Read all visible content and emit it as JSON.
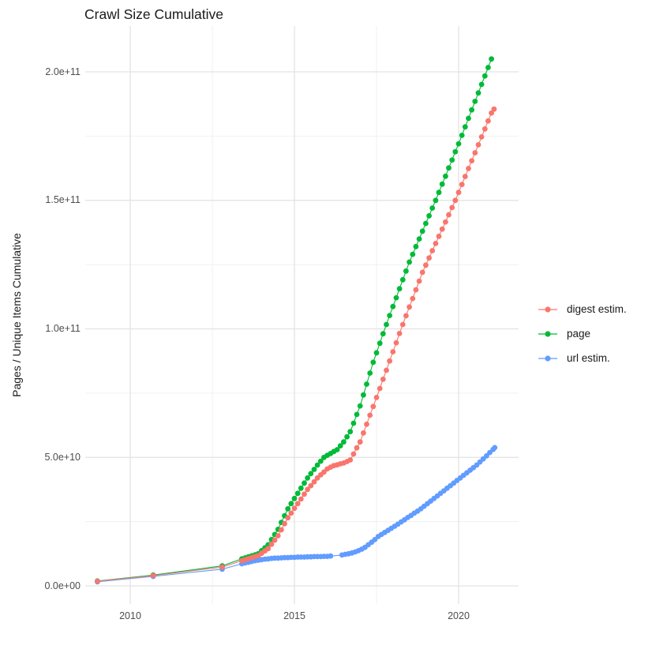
{
  "title": "Crawl Size Cumulative",
  "y_axis": {
    "label": "Pages / Unique Items Cumulative",
    "tick_labels": [
      "0.0e+00",
      "5.0e+10",
      "1.0e+11",
      "1.5e+11",
      "2.0e+11"
    ],
    "tick_values_e9": [
      0,
      50,
      100,
      150,
      200
    ],
    "minor_e9": [
      25,
      75,
      125,
      175
    ]
  },
  "x_axis": {
    "tick_labels": [
      "2010",
      "2015",
      "2020"
    ],
    "tick_values": [
      2010,
      2015,
      2020
    ],
    "minor_values": [
      2012.5,
      2017.5
    ]
  },
  "legend": {
    "position": "right",
    "items": [
      {
        "label": "digest estim.",
        "color": "#F8766D"
      },
      {
        "label": "page",
        "color": "#00BA38"
      },
      {
        "label": "url estim.",
        "color": "#619CFF"
      }
    ]
  },
  "style": {
    "background": "#ffffff",
    "grid_major": "#e3e3e3",
    "grid_minor": "#f0f0f0",
    "text_dark": "#1a1a1a",
    "text_axis": "#4d4d4d"
  },
  "chart_data": {
    "type": "scatter",
    "title": "Crawl Size Cumulative",
    "xlabel": "",
    "ylabel": "Pages / Unique Items Cumulative",
    "xlim": [
      2008.6,
      2021.8
    ],
    "ylim": [
      -7000000000,
      217000000000
    ],
    "grid": true,
    "legend_position": "right",
    "values_unit": "billions (1e9) of pages / unique items",
    "series": [
      {
        "name": "digest estim.",
        "color": "#F8766D",
        "points": [
          [
            2009,
            1.8
          ],
          [
            2010.7,
            4
          ],
          [
            2012.8,
            7.3
          ],
          [
            2013.4,
            9.8
          ],
          [
            2013.5,
            10.2
          ],
          [
            2013.6,
            10.6
          ],
          [
            2013.7,
            11
          ],
          [
            2013.8,
            11.4
          ],
          [
            2013.9,
            11.8
          ],
          [
            2014,
            12.7
          ],
          [
            2014.1,
            13.6
          ],
          [
            2014.2,
            14.5
          ],
          [
            2014.3,
            16.2
          ],
          [
            2014.4,
            17.8
          ],
          [
            2014.5,
            19.5
          ],
          [
            2014.6,
            21.8
          ],
          [
            2014.7,
            24.2
          ],
          [
            2014.8,
            26.5
          ],
          [
            2014.9,
            28.3
          ],
          [
            2015,
            30.2
          ],
          [
            2015.1,
            32
          ],
          [
            2015.2,
            33.8
          ],
          [
            2015.3,
            35.7
          ],
          [
            2015.4,
            37.5
          ],
          [
            2015.5,
            39
          ],
          [
            2015.6,
            40.5
          ],
          [
            2015.7,
            42
          ],
          [
            2015.8,
            43.2
          ],
          [
            2015.9,
            44.3
          ],
          [
            2016,
            45.5
          ],
          [
            2016.1,
            46.2
          ],
          [
            2016.2,
            46.8
          ],
          [
            2016.3,
            47.1
          ],
          [
            2016.4,
            47.5
          ],
          [
            2016.5,
            47.8
          ],
          [
            2016.6,
            48.4
          ],
          [
            2016.7,
            49
          ],
          [
            2016.8,
            51.3
          ],
          [
            2016.9,
            53.7
          ],
          [
            2017,
            56
          ],
          [
            2017.1,
            59.5
          ],
          [
            2017.2,
            62.9
          ],
          [
            2017.3,
            66.4
          ],
          [
            2017.4,
            69.8
          ],
          [
            2017.5,
            73.3
          ],
          [
            2017.6,
            76.8
          ],
          [
            2017.7,
            80.4
          ],
          [
            2017.8,
            83.9
          ],
          [
            2017.9,
            87.5
          ],
          [
            2018,
            91.1
          ],
          [
            2018.1,
            94.6
          ],
          [
            2018.2,
            98.2
          ],
          [
            2018.3,
            101.7
          ],
          [
            2018.4,
            105.1
          ],
          [
            2018.5,
            108.5
          ],
          [
            2018.6,
            111.8
          ],
          [
            2018.7,
            115.2
          ],
          [
            2018.8,
            118.6
          ],
          [
            2018.9,
            122
          ],
          [
            2019,
            124.8
          ],
          [
            2019.1,
            127.6
          ],
          [
            2019.2,
            130.4
          ],
          [
            2019.3,
            133.2
          ],
          [
            2019.4,
            136
          ],
          [
            2019.5,
            138.8
          ],
          [
            2019.6,
            141.6
          ],
          [
            2019.7,
            144.4
          ],
          [
            2019.8,
            147.2
          ],
          [
            2019.9,
            150
          ],
          [
            2020,
            153.1
          ],
          [
            2020.1,
            156.2
          ],
          [
            2020.2,
            159.3
          ],
          [
            2020.3,
            162.4
          ],
          [
            2020.4,
            165.4
          ],
          [
            2020.5,
            168.5
          ],
          [
            2020.6,
            171.6
          ],
          [
            2020.7,
            174.7
          ],
          [
            2020.8,
            177.8
          ],
          [
            2020.9,
            180.9
          ],
          [
            2021,
            184
          ],
          [
            2021.08,
            185.5
          ]
        ]
      },
      {
        "name": "page",
        "color": "#00BA38",
        "points": [
          [
            2009,
            1.9
          ],
          [
            2010.7,
            4.2
          ],
          [
            2012.8,
            7.8
          ],
          [
            2013.4,
            10.5
          ],
          [
            2013.5,
            10.9
          ],
          [
            2013.6,
            11.3
          ],
          [
            2013.7,
            11.7
          ],
          [
            2013.8,
            12.1
          ],
          [
            2013.9,
            12.5
          ],
          [
            2014,
            13.7
          ],
          [
            2014.1,
            14.8
          ],
          [
            2014.2,
            16
          ],
          [
            2014.3,
            18
          ],
          [
            2014.4,
            20
          ],
          [
            2014.5,
            22
          ],
          [
            2014.6,
            24.7
          ],
          [
            2014.7,
            27.3
          ],
          [
            2014.8,
            30
          ],
          [
            2014.9,
            32
          ],
          [
            2015,
            34
          ],
          [
            2015.1,
            36
          ],
          [
            2015.2,
            38
          ],
          [
            2015.3,
            40
          ],
          [
            2015.4,
            42
          ],
          [
            2015.5,
            43.7
          ],
          [
            2015.6,
            45.3
          ],
          [
            2015.7,
            47
          ],
          [
            2015.8,
            48.5
          ],
          [
            2015.9,
            50
          ],
          [
            2016,
            50.8
          ],
          [
            2016.1,
            51.5
          ],
          [
            2016.2,
            52.3
          ],
          [
            2016.3,
            53
          ],
          [
            2016.4,
            54.5
          ],
          [
            2016.5,
            56
          ],
          [
            2016.6,
            58
          ],
          [
            2016.7,
            60
          ],
          [
            2016.8,
            63.3
          ],
          [
            2016.9,
            66.7
          ],
          [
            2017,
            70
          ],
          [
            2017.1,
            74.3
          ],
          [
            2017.2,
            78.5
          ],
          [
            2017.3,
            82.8
          ],
          [
            2017.4,
            87
          ],
          [
            2017.5,
            90.7
          ],
          [
            2017.6,
            94.4
          ],
          [
            2017.7,
            98.1
          ],
          [
            2017.8,
            101.7
          ],
          [
            2017.9,
            105.2
          ],
          [
            2018,
            108.7
          ],
          [
            2018.1,
            112.1
          ],
          [
            2018.2,
            115.6
          ],
          [
            2018.3,
            119.1
          ],
          [
            2018.4,
            122.5
          ],
          [
            2018.5,
            126
          ],
          [
            2018.6,
            129
          ],
          [
            2018.7,
            132
          ],
          [
            2018.8,
            135
          ],
          [
            2018.9,
            138
          ],
          [
            2019,
            141
          ],
          [
            2019.1,
            144
          ],
          [
            2019.2,
            147
          ],
          [
            2019.3,
            150
          ],
          [
            2019.4,
            153.1
          ],
          [
            2019.5,
            156.3
          ],
          [
            2019.6,
            159.4
          ],
          [
            2019.7,
            162.6
          ],
          [
            2019.8,
            165.7
          ],
          [
            2019.9,
            168.9
          ],
          [
            2020,
            172
          ],
          [
            2020.1,
            175.3
          ],
          [
            2020.2,
            178.6
          ],
          [
            2020.3,
            181.9
          ],
          [
            2020.4,
            185.2
          ],
          [
            2020.5,
            188.5
          ],
          [
            2020.6,
            191.8
          ],
          [
            2020.7,
            195.1
          ],
          [
            2020.8,
            198.4
          ],
          [
            2020.9,
            201.7
          ],
          [
            2021,
            205
          ]
        ]
      },
      {
        "name": "url estim.",
        "color": "#619CFF",
        "points": [
          [
            2009,
            1.6
          ],
          [
            2010.7,
            3.7
          ],
          [
            2012.8,
            6.5
          ],
          [
            2013.4,
            8.6
          ],
          [
            2013.5,
            8.9
          ],
          [
            2013.6,
            9.2
          ],
          [
            2013.7,
            9.5
          ],
          [
            2013.8,
            9.8
          ],
          [
            2013.9,
            10
          ],
          [
            2014,
            10.2
          ],
          [
            2014.1,
            10.4
          ],
          [
            2014.2,
            10.5
          ],
          [
            2014.3,
            10.7
          ],
          [
            2014.4,
            10.8
          ],
          [
            2014.5,
            10.8
          ],
          [
            2014.6,
            10.9
          ],
          [
            2014.7,
            11
          ],
          [
            2014.8,
            11
          ],
          [
            2014.9,
            11.1
          ],
          [
            2015,
            11.1
          ],
          [
            2015.1,
            11.2
          ],
          [
            2015.2,
            11.2
          ],
          [
            2015.3,
            11.2
          ],
          [
            2015.4,
            11.3
          ],
          [
            2015.5,
            11.3
          ],
          [
            2015.6,
            11.4
          ],
          [
            2015.7,
            11.4
          ],
          [
            2015.8,
            11.4
          ],
          [
            2015.9,
            11.5
          ],
          [
            2016,
            11.5
          ],
          [
            2016.1,
            11.6
          ],
          [
            2016.45,
            12
          ],
          [
            2016.55,
            12.3
          ],
          [
            2016.65,
            12.5
          ],
          [
            2016.75,
            12.8
          ],
          [
            2016.85,
            13.2
          ],
          [
            2016.95,
            13.7
          ],
          [
            2017.05,
            14.3
          ],
          [
            2017.15,
            15
          ],
          [
            2017.25,
            16
          ],
          [
            2017.35,
            17
          ],
          [
            2017.45,
            18
          ],
          [
            2017.55,
            19.2
          ],
          [
            2017.65,
            20
          ],
          [
            2017.75,
            20.8
          ],
          [
            2017.85,
            21.6
          ],
          [
            2017.95,
            22.4
          ],
          [
            2018.05,
            23.2
          ],
          [
            2018.15,
            24
          ],
          [
            2018.25,
            24.9
          ],
          [
            2018.35,
            25.7
          ],
          [
            2018.45,
            26.6
          ],
          [
            2018.55,
            27.4
          ],
          [
            2018.65,
            28.3
          ],
          [
            2018.75,
            29.1
          ],
          [
            2018.85,
            30
          ],
          [
            2018.95,
            31
          ],
          [
            2019.05,
            32
          ],
          [
            2019.15,
            33
          ],
          [
            2019.25,
            34
          ],
          [
            2019.35,
            35
          ],
          [
            2019.45,
            36
          ],
          [
            2019.55,
            37
          ],
          [
            2019.65,
            38
          ],
          [
            2019.75,
            39
          ],
          [
            2019.85,
            40
          ],
          [
            2019.95,
            41
          ],
          [
            2020.05,
            42
          ],
          [
            2020.15,
            43
          ],
          [
            2020.25,
            44
          ],
          [
            2020.35,
            45
          ],
          [
            2020.45,
            46
          ],
          [
            2020.55,
            47
          ],
          [
            2020.65,
            48.2
          ],
          [
            2020.75,
            49.4
          ],
          [
            2020.85,
            50.6
          ],
          [
            2020.95,
            51.9
          ],
          [
            2021.05,
            53.1
          ],
          [
            2021.1,
            53.8
          ]
        ]
      }
    ]
  }
}
